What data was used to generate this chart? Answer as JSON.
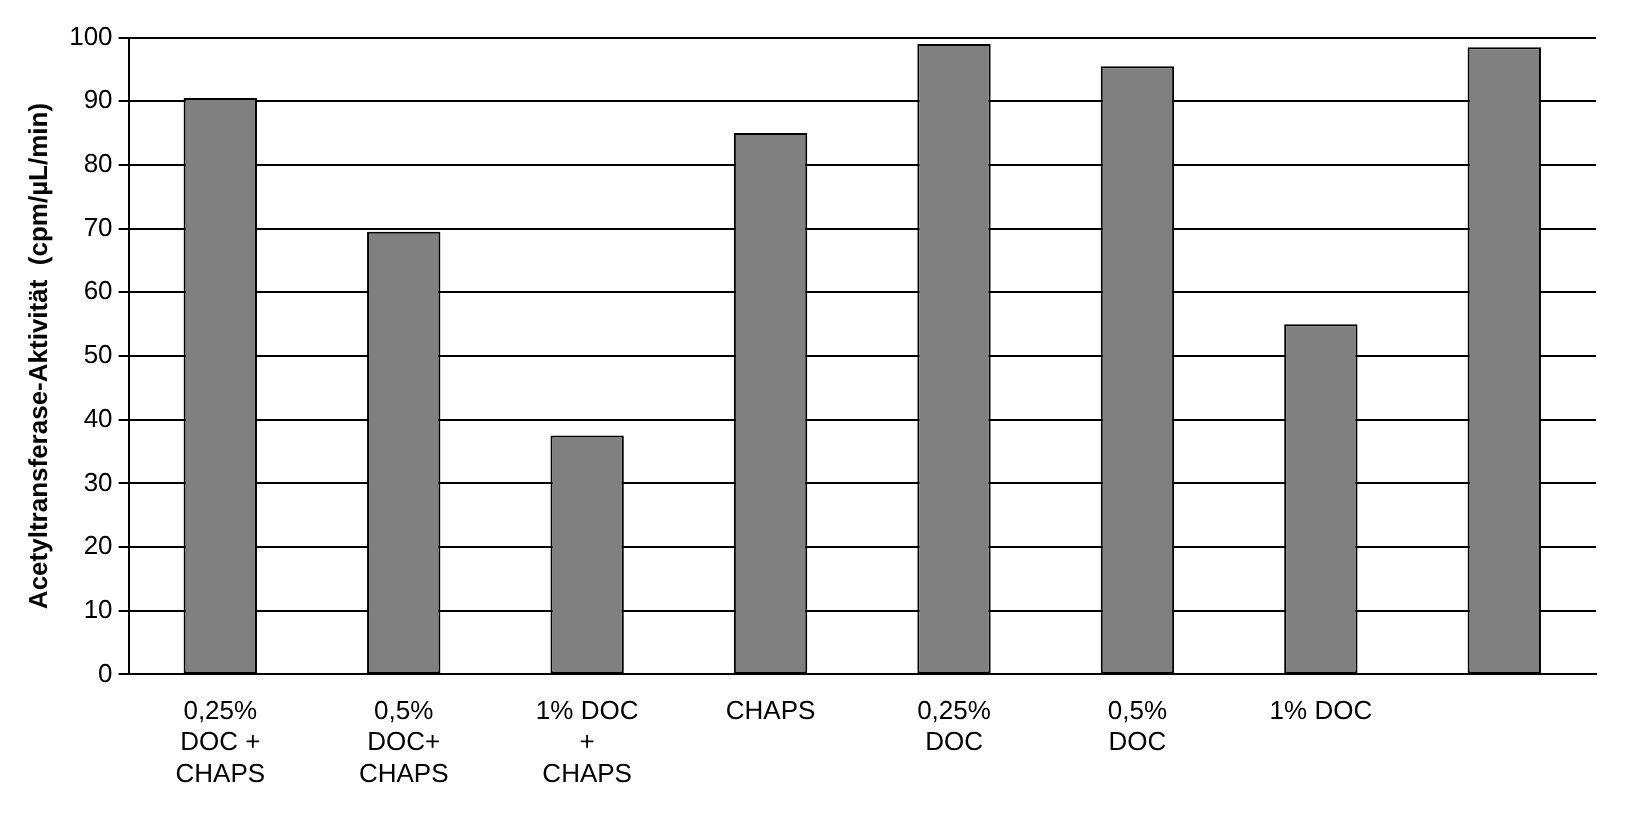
{
  "chart_data": {
    "type": "bar",
    "ylabel": "Acetyltransferase-Aktivität  (cpm/µL/min)",
    "categories": [
      [
        "0,25%",
        "DOC +",
        "CHAPS"
      ],
      [
        "0,5%",
        "DOC+",
        "CHAPS"
      ],
      [
        "1% DOC",
        "+",
        "CHAPS"
      ],
      [
        "CHAPS"
      ],
      [
        "0,25%",
        "DOC"
      ],
      [
        "0,5%",
        "DOC"
      ],
      [
        "1% DOC"
      ],
      null
    ],
    "values": [
      90.5,
      69.5,
      37.5,
      85,
      99,
      95.5,
      55,
      98.5
    ],
    "color": "#808080",
    "ylim": [
      0,
      100
    ],
    "yticks": [
      0,
      10,
      20,
      30,
      40,
      50,
      60,
      70,
      80,
      90,
      100
    ],
    "grid": "y"
  }
}
